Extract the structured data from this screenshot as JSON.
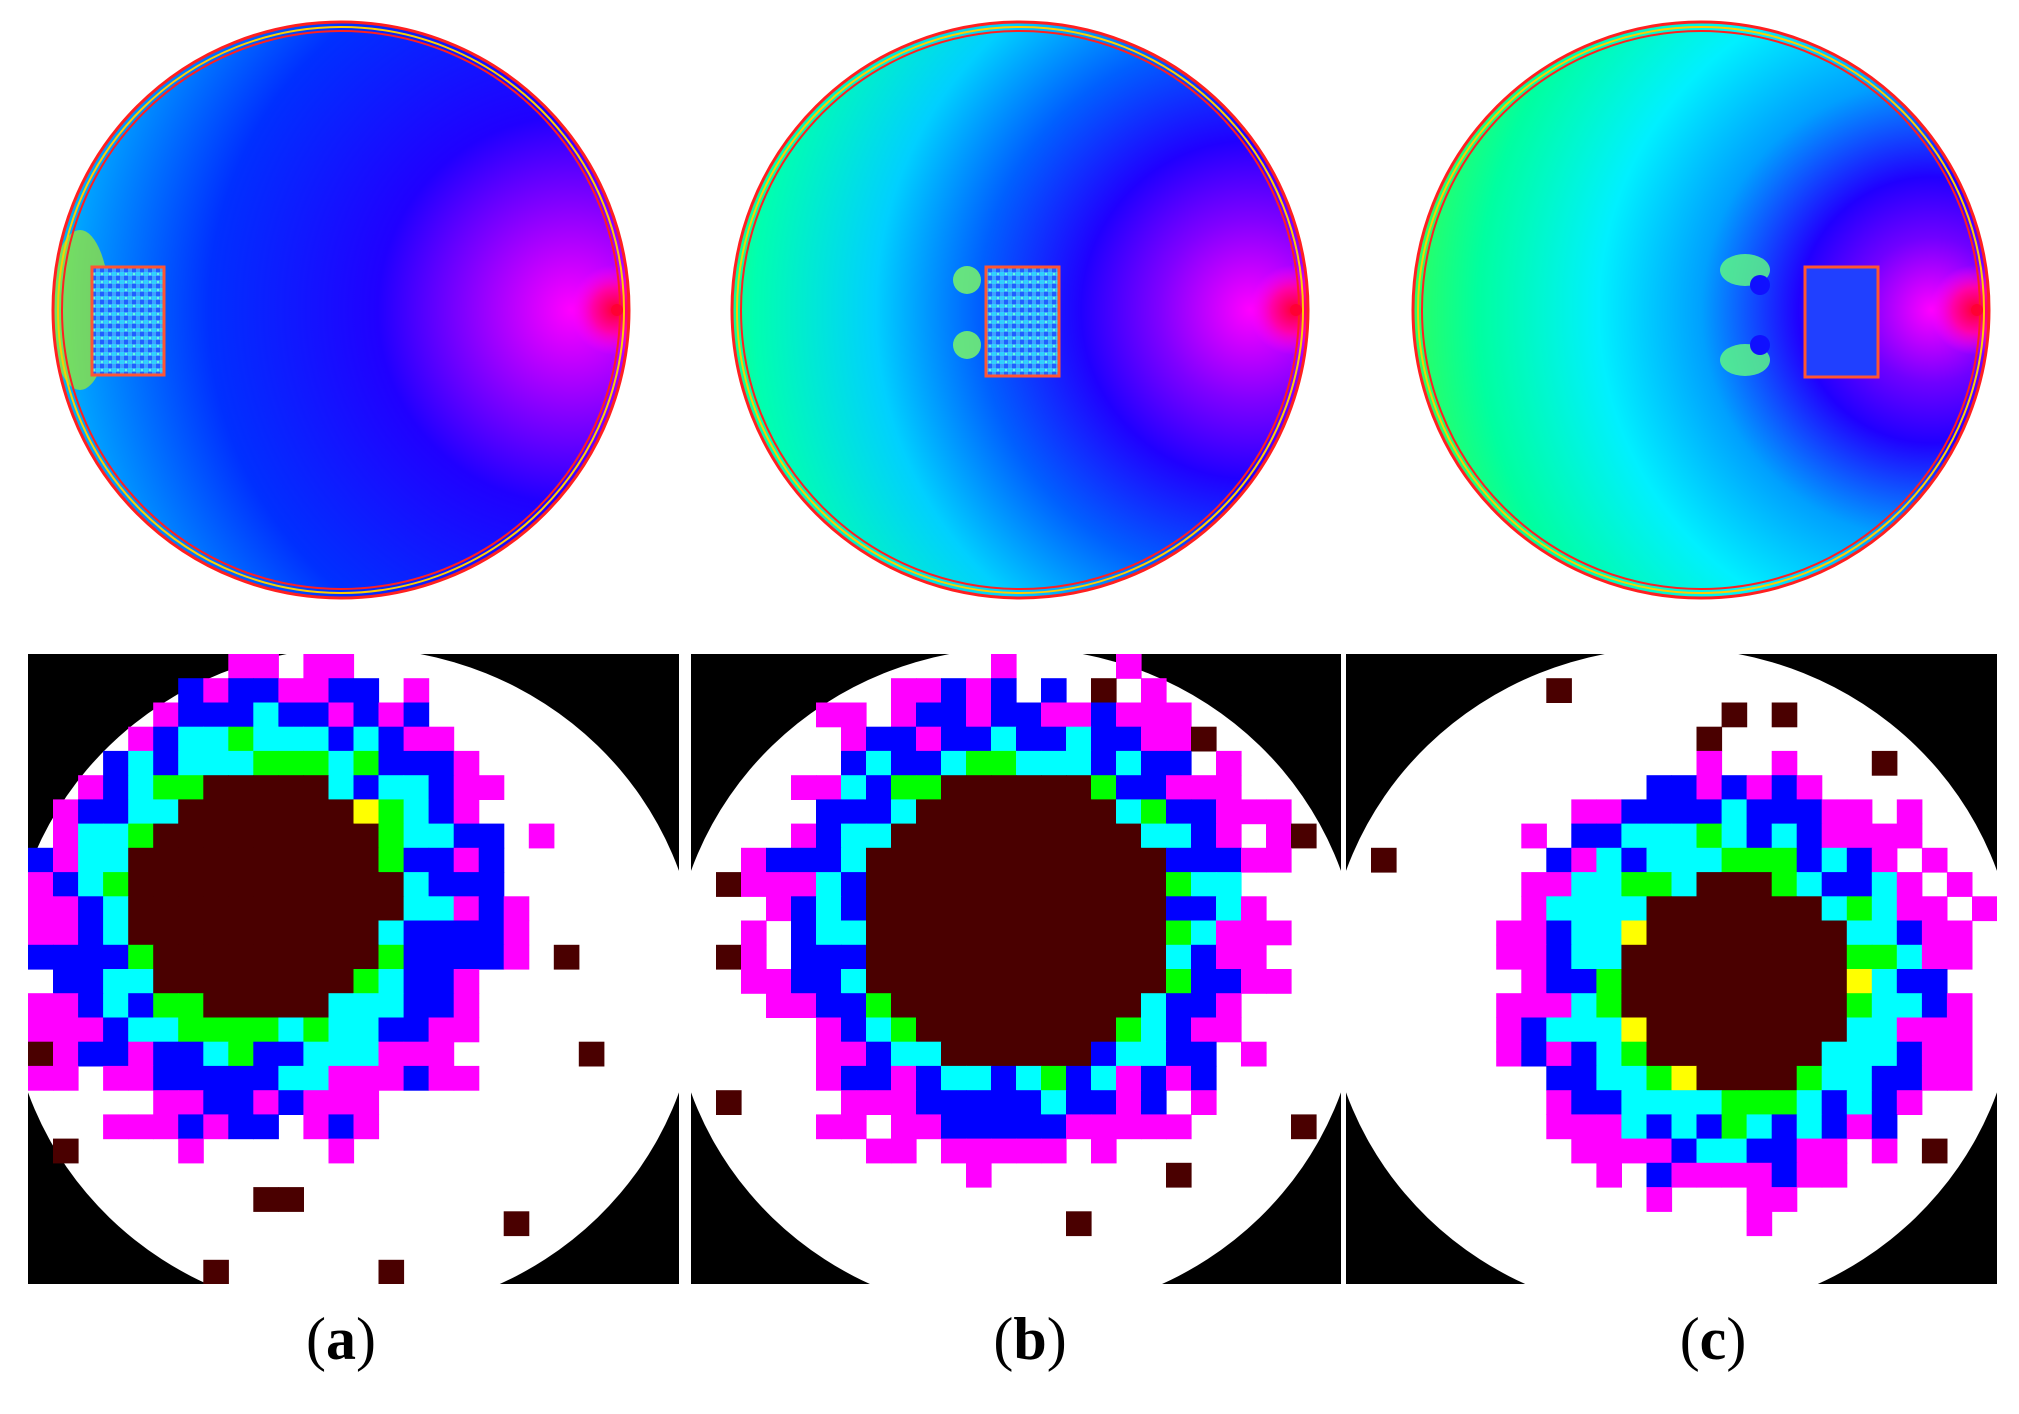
{
  "panels": [
    {
      "label": "a",
      "inclusion": "left",
      "image_pattern": "blob-left"
    },
    {
      "label": "b",
      "inclusion": "center",
      "image_pattern": "blob-center"
    },
    {
      "label": "c",
      "inclusion": "right",
      "image_pattern": "blob-right"
    }
  ],
  "colors": {
    "boundary_ring": "#ff2020",
    "electrode": "#ff0033",
    "inclusion_border": "#ff5533",
    "background_black": "#000000",
    "background_white": "#ffffff",
    "blob_core": "#4a0000"
  },
  "colormap": [
    "#ff00ff",
    "#0000ff",
    "#00ffff",
    "#00ff00",
    "#ffff00",
    "#ff8000",
    "#ff0000",
    "#4a0000"
  ]
}
